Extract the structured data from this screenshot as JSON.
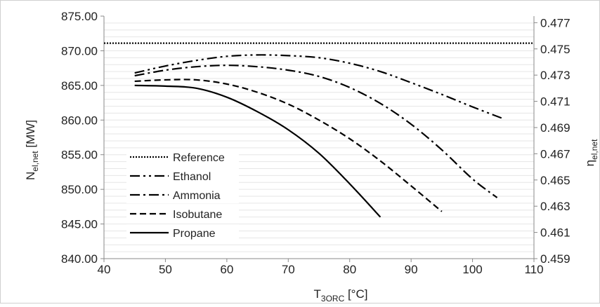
{
  "chart_data": {
    "type": "line",
    "xlabel": "T",
    "xlabel_sub": "3ORC",
    "xlabel_unit": " [°C]",
    "ylabel": "N",
    "ylabel_sub": "el,net",
    "ylabel_unit": " [MW]",
    "y2label": "η",
    "y2label_sub": "el,net",
    "xlim": [
      40,
      110
    ],
    "ylim": [
      840,
      875
    ],
    "y2lim": [
      0.459,
      0.4775
    ],
    "xticks": [
      "40",
      "50",
      "60",
      "70",
      "80",
      "90",
      "100",
      "110"
    ],
    "yticks": [
      "840.00",
      "845.00",
      "850.00",
      "855.00",
      "860.00",
      "865.00",
      "870.00",
      "875.00"
    ],
    "y2ticks": [
      "0.459",
      "0.461",
      "0.463",
      "0.465",
      "0.467",
      "0.469",
      "0.471",
      "0.473",
      "0.475",
      "0.477"
    ],
    "grid": "minor horizontal",
    "legend_position": "bottom-left",
    "series": [
      {
        "name": "Reference",
        "style": "dotted",
        "x": [
          40,
          110
        ],
        "y": [
          871.1,
          871.1
        ]
      },
      {
        "name": "Ethanol",
        "style": "dash-dot-dot",
        "x": [
          45,
          50,
          55,
          60,
          65,
          70,
          75,
          80,
          85,
          90,
          95,
          100,
          105
        ],
        "y": [
          866.8,
          867.8,
          868.6,
          869.2,
          869.4,
          869.3,
          869.0,
          868.2,
          867.0,
          865.4,
          863.7,
          861.9,
          860.2
        ]
      },
      {
        "name": "Ammonia",
        "style": "dash-dot",
        "x": [
          45,
          50,
          55,
          60,
          65,
          70,
          75,
          80,
          85,
          90,
          95,
          100,
          104
        ],
        "y": [
          866.4,
          867.2,
          867.7,
          867.9,
          867.7,
          867.2,
          866.3,
          864.7,
          862.4,
          859.4,
          855.7,
          851.5,
          848.8
        ]
      },
      {
        "name": "Isobutane",
        "style": "dashed",
        "x": [
          45,
          50,
          55,
          60,
          65,
          70,
          75,
          80,
          85,
          90,
          95
        ],
        "y": [
          865.6,
          865.8,
          865.8,
          865.2,
          864.0,
          862.3,
          860.0,
          857.3,
          854.1,
          850.5,
          846.8
        ]
      },
      {
        "name": "Propane",
        "style": "solid",
        "x": [
          45,
          50,
          55,
          60,
          65,
          70,
          75,
          80,
          85
        ],
        "y": [
          865.0,
          864.9,
          864.6,
          863.3,
          861.2,
          858.6,
          855.2,
          850.8,
          846.0
        ]
      }
    ]
  }
}
